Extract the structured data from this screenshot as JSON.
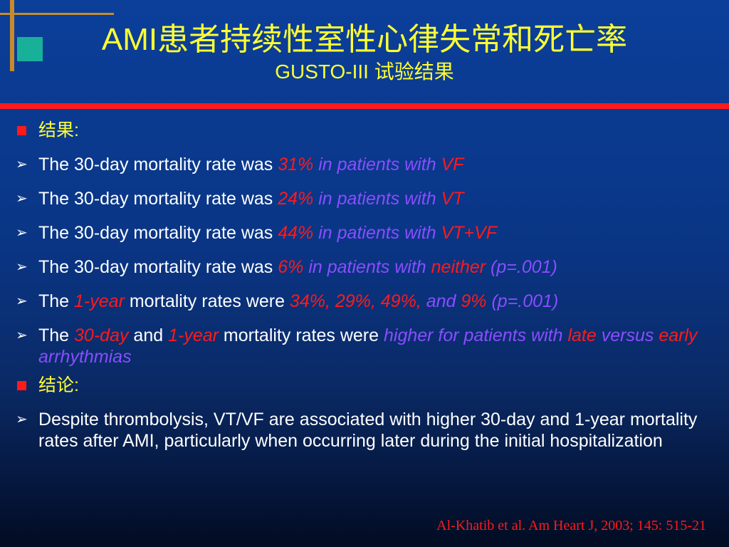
{
  "title": {
    "main": "AMI患者持续性室性心律失常和死亡率",
    "sub": "GUSTO-III 试验结果"
  },
  "section_results": "结果:",
  "items": [
    {
      "pre": "The 30-day mortality rate was ",
      "red": "31%",
      "vio": " in patients with ",
      "red2": "VF"
    },
    {
      "pre": " The 30-day mortality rate was ",
      "red": "24%",
      "vio": " in patients with ",
      "red2": "VT"
    },
    {
      "pre": "The 30-day mortality rate was ",
      "red": "44%",
      "vio": " in patients with ",
      "red2": "VT+VF"
    },
    {
      "pre": "The 30-day mortality rate was ",
      "red": "6%",
      "vio": " in patients with ",
      "red2": "neither",
      "vio2": " (p=.001)"
    }
  ],
  "item5": {
    "pre": "The ",
    "red": "1-year",
    "mid": " mortality rates were ",
    "red2": "34%, 29%, 49%,",
    "vio": " and ",
    "red3": "9%",
    "vio2": " (p=.001)"
  },
  "item6": {
    "pre": "The ",
    "red": "30-day",
    "mid": " and ",
    "red2": "1-year",
    "mid2": " mortality rates were ",
    "vio": "higher for patients with ",
    "red3": "late",
    "vio2": " versus ",
    "red4": "early",
    "vio3": " arrhythmias"
  },
  "section_conclusion": "结论:",
  "conclusion": "Despite thrombolysis, VT/VF are associated with higher 30-day and 1-year mortality rates after AMI, particularly when occurring later during the initial hospitalization",
  "reference": "Al-Khatib et al. Am Heart J, 2003; 145: 515-21"
}
